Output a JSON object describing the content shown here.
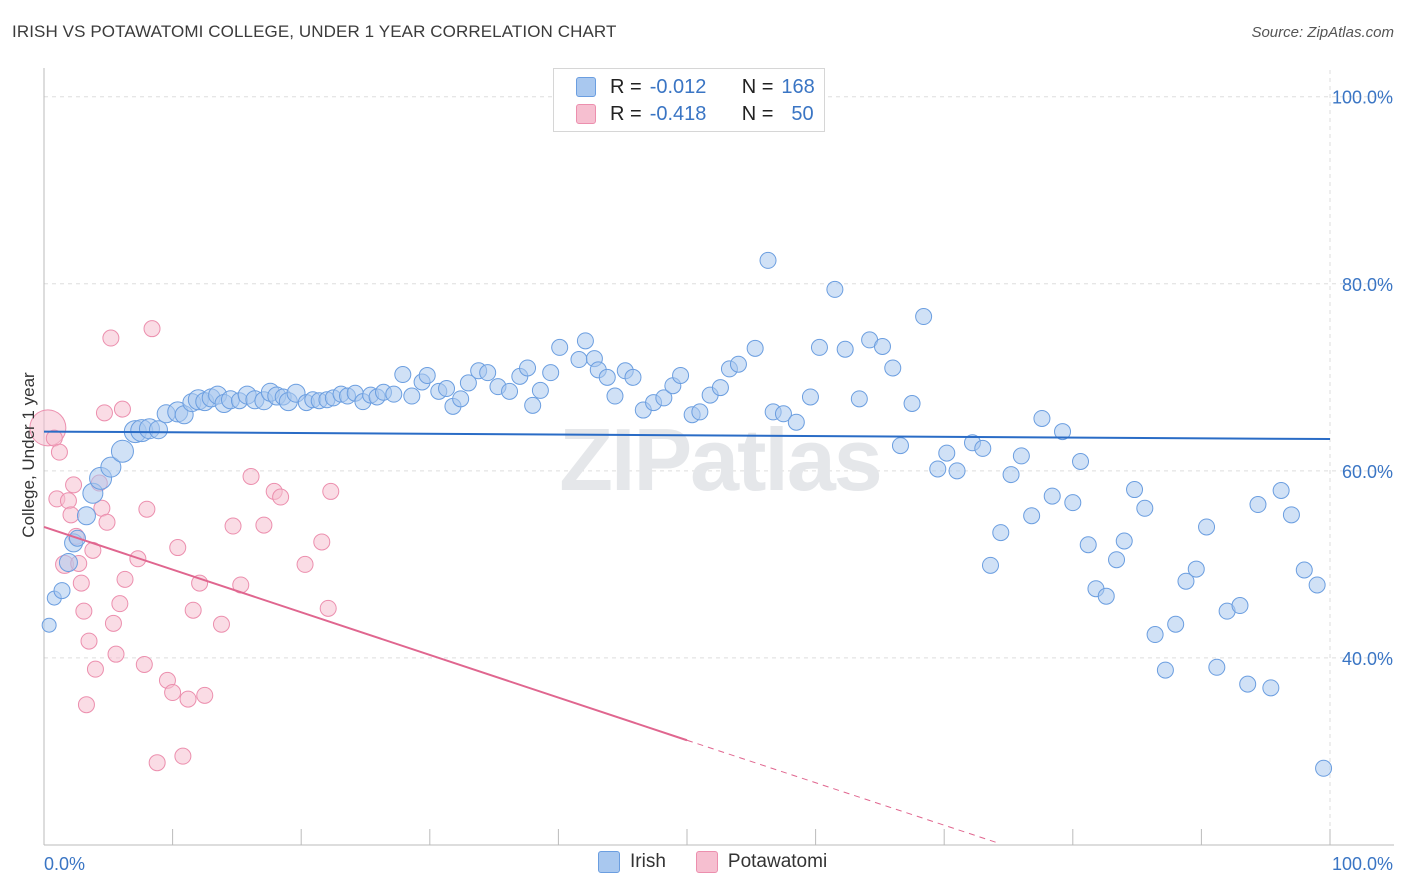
{
  "header": {
    "title": "IRISH VS POTAWATOMI COLLEGE, UNDER 1 YEAR CORRELATION CHART",
    "source": "Source: ZipAtlas.com"
  },
  "legend": {
    "rows": [
      {
        "r_label": "R =",
        "r_value": "-0.012",
        "n_label": "N =",
        "n_value": "168"
      },
      {
        "r_label": "R =",
        "r_value": "-0.418",
        "n_label": "N =",
        "n_value": "50"
      }
    ]
  },
  "bottom_legend": {
    "irish": "Irish",
    "potawatomi": "Potawatomi"
  },
  "watermark": "ZIPatlas",
  "colors": {
    "irish_fill": "#a9c8ef",
    "irish_stroke": "#6b9ee0",
    "irish_line": "#2a6cc6",
    "pota_fill": "#f6bfd0",
    "pota_stroke": "#ec8fae",
    "pota_line": "#e0668f",
    "grid": "#dddddd",
    "tick_text": "#3a75c4"
  },
  "chart_data": {
    "type": "scatter",
    "title": "IRISH VS POTAWATOMI COLLEGE, UNDER 1 YEAR CORRELATION CHART",
    "xlabel": "",
    "ylabel": "College, Under 1 year",
    "xlim": [
      0,
      100
    ],
    "ylim": [
      20,
      102
    ],
    "x_tick_labels": [
      "0.0%",
      "100.0%"
    ],
    "y_ticks": [
      40,
      60,
      80,
      100
    ],
    "y_tick_labels": [
      "40.0%",
      "60.0%",
      "80.0%",
      "100.0%"
    ],
    "grid": true,
    "legend_position": "top-center",
    "series": [
      {
        "name": "Irish",
        "R": -0.012,
        "N": 168,
        "trend": {
          "x": [
            0,
            100
          ],
          "y": [
            64.2,
            63.4
          ]
        },
        "points": [
          [
            0.4,
            43.5,
            7
          ],
          [
            0.8,
            46.4,
            7
          ],
          [
            1.4,
            47.2,
            8
          ],
          [
            1.9,
            50.2,
            9
          ],
          [
            2.3,
            52.3,
            9
          ],
          [
            2.6,
            52.8,
            8
          ],
          [
            3.3,
            55.2,
            9
          ],
          [
            3.8,
            57.6,
            10
          ],
          [
            4.4,
            59.2,
            11
          ],
          [
            5.2,
            60.4,
            10
          ],
          [
            6.1,
            62.1,
            11
          ],
          [
            7.1,
            64.2,
            11
          ],
          [
            7.6,
            64.3,
            11
          ],
          [
            8.2,
            64.5,
            10
          ],
          [
            8.9,
            64.4,
            9
          ],
          [
            9.5,
            66.1,
            9
          ],
          [
            10.4,
            66.3,
            10
          ],
          [
            10.9,
            66.0,
            9
          ],
          [
            11.5,
            67.3,
            9
          ],
          [
            12.0,
            67.6,
            10
          ],
          [
            12.5,
            67.4,
            9
          ],
          [
            13.0,
            67.8,
            9
          ],
          [
            13.5,
            68.1,
            9
          ],
          [
            14.0,
            67.2,
            9
          ],
          [
            14.5,
            67.6,
            9
          ],
          [
            15.2,
            67.5,
            8
          ],
          [
            15.8,
            68.1,
            9
          ],
          [
            16.4,
            67.6,
            9
          ],
          [
            17.1,
            67.5,
            9
          ],
          [
            17.6,
            68.4,
            9
          ],
          [
            18.1,
            68.0,
            9
          ],
          [
            18.6,
            67.9,
            8
          ],
          [
            19.0,
            67.4,
            9
          ],
          [
            19.6,
            68.3,
            9
          ],
          [
            20.4,
            67.3,
            8
          ],
          [
            20.9,
            67.6,
            8
          ],
          [
            21.4,
            67.5,
            8
          ],
          [
            22.0,
            67.6,
            8
          ],
          [
            22.5,
            67.8,
            8
          ],
          [
            23.1,
            68.2,
            8
          ],
          [
            23.6,
            68.0,
            8
          ],
          [
            24.2,
            68.3,
            8
          ],
          [
            24.8,
            67.4,
            8
          ],
          [
            25.4,
            68.1,
            8
          ],
          [
            25.9,
            67.9,
            8
          ],
          [
            26.4,
            68.4,
            8
          ],
          [
            27.2,
            68.2,
            8
          ],
          [
            27.9,
            70.3,
            8
          ],
          [
            28.6,
            68.0,
            8
          ],
          [
            29.4,
            69.5,
            8
          ],
          [
            29.8,
            70.2,
            8
          ],
          [
            30.7,
            68.5,
            8
          ],
          [
            31.3,
            68.8,
            8
          ],
          [
            31.8,
            66.9,
            8
          ],
          [
            32.4,
            67.7,
            8
          ],
          [
            33.0,
            69.4,
            8
          ],
          [
            33.8,
            70.7,
            8
          ],
          [
            34.5,
            70.5,
            8
          ],
          [
            35.3,
            69.0,
            8
          ],
          [
            36.2,
            68.5,
            8
          ],
          [
            37.0,
            70.1,
            8
          ],
          [
            37.6,
            71.0,
            8
          ],
          [
            38.0,
            67.0,
            8
          ],
          [
            38.6,
            68.6,
            8
          ],
          [
            39.4,
            70.5,
            8
          ],
          [
            40.1,
            73.2,
            8
          ],
          [
            41.6,
            71.9,
            8
          ],
          [
            42.1,
            73.9,
            8
          ],
          [
            42.8,
            72.0,
            8
          ],
          [
            43.1,
            70.8,
            8
          ],
          [
            43.8,
            70.0,
            8
          ],
          [
            44.4,
            68.0,
            8
          ],
          [
            45.2,
            70.7,
            8
          ],
          [
            45.8,
            70.0,
            8
          ],
          [
            46.6,
            66.5,
            8
          ],
          [
            47.4,
            67.3,
            8
          ],
          [
            48.2,
            67.8,
            8
          ],
          [
            48.9,
            69.1,
            8
          ],
          [
            49.5,
            70.2,
            8
          ],
          [
            50.4,
            66.0,
            8
          ],
          [
            51.0,
            66.3,
            8
          ],
          [
            51.8,
            68.1,
            8
          ],
          [
            52.6,
            68.9,
            8
          ],
          [
            53.3,
            70.9,
            8
          ],
          [
            54.0,
            71.4,
            8
          ],
          [
            55.3,
            73.1,
            8
          ],
          [
            56.3,
            82.5,
            8
          ],
          [
            56.7,
            66.3,
            8
          ],
          [
            57.5,
            66.1,
            8
          ],
          [
            58.5,
            65.2,
            8
          ],
          [
            59.6,
            67.9,
            8
          ],
          [
            60.3,
            73.2,
            8
          ],
          [
            61.5,
            79.4,
            8
          ],
          [
            62.3,
            73.0,
            8
          ],
          [
            63.4,
            67.7,
            8
          ],
          [
            64.2,
            74.0,
            8
          ],
          [
            65.2,
            73.3,
            8
          ],
          [
            66.0,
            71.0,
            8
          ],
          [
            66.6,
            62.7,
            8
          ],
          [
            67.5,
            67.2,
            8
          ],
          [
            68.4,
            76.5,
            8
          ],
          [
            69.5,
            60.2,
            8
          ],
          [
            70.2,
            61.9,
            8
          ],
          [
            71.0,
            60.0,
            8
          ],
          [
            72.2,
            63.0,
            8
          ],
          [
            73.0,
            62.4,
            8
          ],
          [
            73.6,
            49.9,
            8
          ],
          [
            74.4,
            53.4,
            8
          ],
          [
            75.2,
            59.6,
            8
          ],
          [
            76.0,
            61.6,
            8
          ],
          [
            76.8,
            55.2,
            8
          ],
          [
            77.6,
            65.6,
            8
          ],
          [
            78.4,
            57.3,
            8
          ],
          [
            79.2,
            64.2,
            8
          ],
          [
            80.0,
            56.6,
            8
          ],
          [
            80.6,
            61.0,
            8
          ],
          [
            81.2,
            52.1,
            8
          ],
          [
            81.8,
            47.4,
            8
          ],
          [
            82.6,
            46.6,
            8
          ],
          [
            83.4,
            50.5,
            8
          ],
          [
            84.0,
            52.5,
            8
          ],
          [
            84.8,
            58.0,
            8
          ],
          [
            85.6,
            56.0,
            8
          ],
          [
            86.4,
            42.5,
            8
          ],
          [
            87.2,
            38.7,
            8
          ],
          [
            88.0,
            43.6,
            8
          ],
          [
            88.8,
            48.2,
            8
          ],
          [
            89.6,
            49.5,
            8
          ],
          [
            90.4,
            54.0,
            8
          ],
          [
            91.2,
            39.0,
            8
          ],
          [
            92.0,
            45.0,
            8
          ],
          [
            93.0,
            45.6,
            8
          ],
          [
            93.6,
            37.2,
            8
          ],
          [
            94.4,
            56.4,
            8
          ],
          [
            95.4,
            36.8,
            8
          ],
          [
            96.2,
            57.9,
            8
          ],
          [
            97.0,
            55.3,
            8
          ],
          [
            98.0,
            49.4,
            8
          ],
          [
            99.0,
            47.8,
            8
          ],
          [
            99.5,
            28.2,
            8
          ]
        ]
      },
      {
        "name": "Potawatomi",
        "R": -0.418,
        "N": 50,
        "trend": {
          "x": [
            0,
            50
          ],
          "y": [
            54.0,
            31.2
          ]
        },
        "trend_dashed": {
          "x": [
            50,
            74
          ],
          "y": [
            31.2,
            20.3
          ]
        },
        "points": [
          [
            0.3,
            64.6,
            18
          ],
          [
            0.8,
            63.5,
            8
          ],
          [
            1.0,
            57.0,
            8
          ],
          [
            1.2,
            62.0,
            8
          ],
          [
            1.6,
            50.0,
            9
          ],
          [
            1.9,
            56.8,
            8
          ],
          [
            2.1,
            55.3,
            8
          ],
          [
            2.3,
            58.5,
            8
          ],
          [
            2.5,
            53.0,
            8
          ],
          [
            2.7,
            50.1,
            8
          ],
          [
            2.9,
            48.0,
            8
          ],
          [
            3.1,
            45.0,
            8
          ],
          [
            3.3,
            35.0,
            8
          ],
          [
            3.5,
            41.8,
            8
          ],
          [
            3.8,
            51.5,
            8
          ],
          [
            4.0,
            38.8,
            8
          ],
          [
            4.3,
            58.7,
            8
          ],
          [
            4.5,
            56.0,
            8
          ],
          [
            4.7,
            66.2,
            8
          ],
          [
            4.9,
            54.5,
            8
          ],
          [
            5.2,
            74.2,
            8
          ],
          [
            5.4,
            43.7,
            8
          ],
          [
            5.6,
            40.4,
            8
          ],
          [
            5.9,
            45.8,
            8
          ],
          [
            6.1,
            66.6,
            8
          ],
          [
            6.3,
            48.4,
            8
          ],
          [
            7.3,
            50.6,
            8
          ],
          [
            7.8,
            39.3,
            8
          ],
          [
            8.0,
            55.9,
            8
          ],
          [
            8.4,
            75.2,
            8
          ],
          [
            8.8,
            28.8,
            8
          ],
          [
            9.6,
            37.6,
            8
          ],
          [
            10.0,
            36.3,
            8
          ],
          [
            10.4,
            51.8,
            8
          ],
          [
            10.8,
            29.5,
            8
          ],
          [
            11.2,
            35.6,
            8
          ],
          [
            11.6,
            45.1,
            8
          ],
          [
            12.1,
            48.0,
            8
          ],
          [
            12.5,
            36.0,
            8
          ],
          [
            13.8,
            43.6,
            8
          ],
          [
            14.7,
            54.1,
            8
          ],
          [
            15.3,
            47.8,
            8
          ],
          [
            16.1,
            59.4,
            8
          ],
          [
            17.1,
            54.2,
            8
          ],
          [
            17.9,
            57.8,
            8
          ],
          [
            18.4,
            57.2,
            8
          ],
          [
            20.3,
            50.0,
            8
          ],
          [
            21.6,
            52.4,
            8
          ],
          [
            22.1,
            45.3,
            8
          ],
          [
            22.3,
            57.8,
            8
          ]
        ]
      }
    ]
  }
}
